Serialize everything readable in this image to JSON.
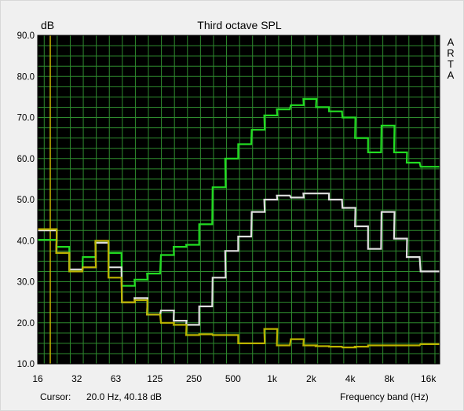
{
  "chart_data": {
    "type": "line",
    "title": "Third octave SPL",
    "ylabel": "dB",
    "xlabel": "Frequency band (Hz)",
    "side_label": [
      "A",
      "R",
      "T",
      "A"
    ],
    "ylim": [
      10,
      90
    ],
    "y_ticks": [
      "90.0",
      "80.0",
      "70.0",
      "60.0",
      "50.0",
      "40.0",
      "30.0",
      "20.0",
      "10.0"
    ],
    "x_ticks": [
      "16",
      "32",
      "63",
      "125",
      "250",
      "500",
      "1k",
      "2k",
      "4k",
      "8k",
      "16k"
    ],
    "x": [
      16,
      20,
      25,
      31.5,
      40,
      50,
      63,
      80,
      100,
      125,
      160,
      200,
      250,
      315,
      400,
      500,
      630,
      800,
      1000,
      1250,
      1600,
      2000,
      2500,
      3150,
      4000,
      5000,
      6300,
      8000,
      10000,
      12500,
      16000,
      20000
    ],
    "grid": true,
    "background": "#000000",
    "grid_color": "#2e8b2e",
    "cursor": {
      "x": 20.0,
      "color": "#c8b400"
    },
    "series": [
      {
        "color": "#22dd22",
        "values": [
          40.2,
          40.2,
          38.5,
          32.5,
          36.0,
          39.5,
          37.0,
          29.0,
          30.5,
          32.0,
          36.5,
          38.5,
          39.0,
          44.0,
          53.0,
          60.0,
          63.5,
          67.0,
          70.5,
          72.0,
          73.0,
          74.5,
          72.5,
          71.5,
          70.0,
          65.0,
          61.5,
          68.0,
          61.5,
          59.0,
          58.0,
          58.0
        ]
      },
      {
        "color": "#e0e0e0",
        "values": [
          42.5,
          42.5,
          37.0,
          33.0,
          33.5,
          39.5,
          33.5,
          25.0,
          26.0,
          22.0,
          23.0,
          20.5,
          19.5,
          24.0,
          31.0,
          37.5,
          41.0,
          47.0,
          50.0,
          51.0,
          50.5,
          51.5,
          51.5,
          50.0,
          48.0,
          43.5,
          38.0,
          47.0,
          40.5,
          36.0,
          32.5,
          32.5
        ]
      },
      {
        "color": "#bcb400",
        "values": [
          42.8,
          42.8,
          37.0,
          32.5,
          33.5,
          40.0,
          31.0,
          25.0,
          25.5,
          22.0,
          20.0,
          19.5,
          17.0,
          17.2,
          17.0,
          17.0,
          15.0,
          15.0,
          18.5,
          14.5,
          16.0,
          14.5,
          14.3,
          14.2,
          14.0,
          14.2,
          14.5,
          14.5,
          14.5,
          14.5,
          14.8,
          14.8
        ]
      }
    ]
  },
  "status_bar": {
    "cursor_label": "Cursor:",
    "cursor_value": "20.0 Hz, 40.18 dB",
    "band_label": "Frequency band (Hz)"
  }
}
